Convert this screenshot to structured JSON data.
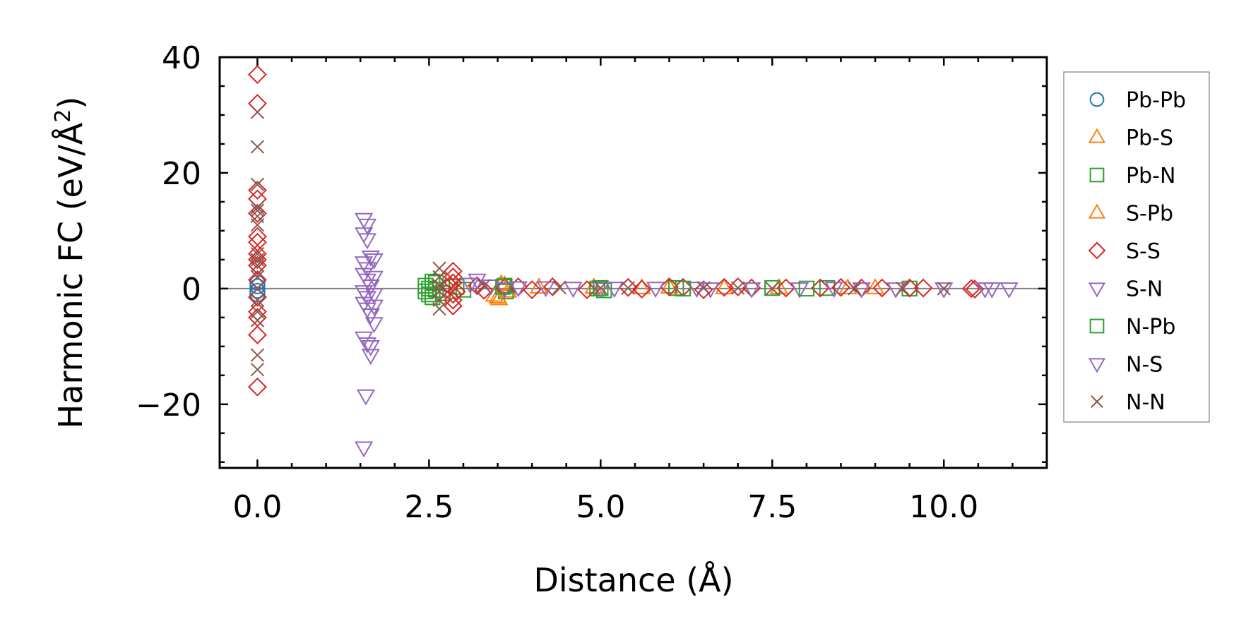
{
  "chart_data": {
    "type": "scatter",
    "xlabel": "Distance (Å)",
    "ylabel_main": "Harmonic FC (eV/Å",
    "ylabel_sup": "2",
    "ylabel_end": ")",
    "xlim": [
      -0.55,
      11.5
    ],
    "ylim": [
      -31,
      40
    ],
    "xticks": [
      0.0,
      2.5,
      5.0,
      7.5,
      10.0
    ],
    "xtick_labels": [
      "0.0",
      "2.5",
      "5.0",
      "7.5",
      "10.0"
    ],
    "yticks": [
      -20,
      0,
      20,
      40
    ],
    "ytick_labels": [
      "−20",
      "0",
      "20",
      "40"
    ],
    "zero_line": 0,
    "legend_position": "outside-right",
    "series": [
      {
        "name": "Pb-Pb",
        "marker": "circle",
        "color": "#1f77b4",
        "points": [
          [
            0,
            1.0
          ],
          [
            0,
            -1.0
          ],
          [
            0,
            0.4
          ],
          [
            0,
            -0.4
          ]
        ]
      },
      {
        "name": "Pb-S",
        "marker": "triangle-up",
        "color": "#ff7f0e",
        "points": [
          [
            3.5,
            -1.5
          ],
          [
            3.52,
            -1.8
          ],
          [
            3.6,
            0.6
          ],
          [
            3.65,
            -0.5
          ],
          [
            4.9,
            0.2
          ],
          [
            6.0,
            0.2
          ],
          [
            7.6,
            0.1
          ],
          [
            9.0,
            0.1
          ]
        ]
      },
      {
        "name": "Pb-N",
        "marker": "square",
        "color": "#2ca02c",
        "points": [
          [
            2.45,
            -0.5
          ],
          [
            2.45,
            0.5
          ],
          [
            2.5,
            0.0
          ],
          [
            2.55,
            -1.5
          ],
          [
            2.6,
            1.0
          ],
          [
            2.7,
            -0.8
          ],
          [
            2.9,
            0.3
          ],
          [
            3.0,
            -0.2
          ],
          [
            3.6,
            0.5
          ],
          [
            3.62,
            -0.5
          ],
          [
            4.95,
            0.0
          ],
          [
            5.05,
            -0.3
          ],
          [
            6.1,
            0.1
          ],
          [
            7.5,
            0.1
          ],
          [
            8.3,
            0.1
          ],
          [
            9.5,
            0.0
          ]
        ]
      },
      {
        "name": "S-Pb",
        "marker": "triangle-up",
        "color": "#ff7f0e",
        "points": [
          [
            3.45,
            -1.2
          ],
          [
            3.55,
            0.8
          ],
          [
            4.1,
            0.2
          ],
          [
            5.6,
            0.1
          ],
          [
            6.8,
            0.1
          ],
          [
            8.6,
            0.1
          ]
        ]
      },
      {
        "name": "S-S",
        "marker": "diamond",
        "color": "#d62728",
        "points": [
          [
            0,
            37
          ],
          [
            0,
            32
          ],
          [
            0,
            17
          ],
          [
            0,
            15.5
          ],
          [
            0,
            13
          ],
          [
            0,
            9
          ],
          [
            0,
            8
          ],
          [
            0,
            6
          ],
          [
            0,
            5
          ],
          [
            0,
            4
          ],
          [
            0,
            1.5
          ],
          [
            0,
            -1.5
          ],
          [
            0,
            -4
          ],
          [
            0,
            -5
          ],
          [
            0,
            -8
          ],
          [
            0,
            -17
          ],
          [
            2.85,
            3.0
          ],
          [
            2.85,
            2.0
          ],
          [
            2.85,
            1.0
          ],
          [
            2.85,
            -1.0
          ],
          [
            2.85,
            -2.0
          ],
          [
            2.85,
            -3.0
          ],
          [
            2.8,
            0.5
          ],
          [
            2.9,
            -0.5
          ],
          [
            3.2,
            0.5
          ],
          [
            3.3,
            -0.3
          ],
          [
            3.6,
            0.2
          ],
          [
            3.8,
            0.3
          ],
          [
            4.0,
            -0.2
          ],
          [
            4.3,
            0.3
          ],
          [
            4.8,
            -0.2
          ],
          [
            5.4,
            0.2
          ],
          [
            5.6,
            -0.1
          ],
          [
            6.0,
            0.3
          ],
          [
            6.2,
            0.2
          ],
          [
            6.5,
            -0.2
          ],
          [
            6.8,
            0.2
          ],
          [
            7.0,
            0.3
          ],
          [
            7.2,
            0.1
          ],
          [
            7.7,
            0.1
          ],
          [
            8.2,
            0.1
          ],
          [
            8.5,
            0.2
          ],
          [
            8.8,
            0.1
          ],
          [
            9.1,
            0.1
          ],
          [
            9.5,
            0.1
          ],
          [
            9.7,
            0.1
          ],
          [
            10.4,
            0.0
          ],
          [
            10.45,
            -0.1
          ]
        ]
      },
      {
        "name": "S-N",
        "marker": "triangle-down",
        "color": "#9467bd",
        "points": [
          [
            1.55,
            12.0
          ],
          [
            1.6,
            11.0
          ],
          [
            1.55,
            9.5
          ],
          [
            1.6,
            8.5
          ],
          [
            1.65,
            5.5
          ],
          [
            1.55,
            4.5
          ],
          [
            1.6,
            3.5
          ],
          [
            1.55,
            2.5
          ],
          [
            1.6,
            1.5
          ],
          [
            1.65,
            0.5
          ],
          [
            1.55,
            -0.5
          ],
          [
            1.6,
            -1.5
          ],
          [
            1.55,
            -2.5
          ],
          [
            1.6,
            -3.5
          ],
          [
            1.65,
            -4.5
          ],
          [
            1.55,
            -8.5
          ],
          [
            1.6,
            -9.5
          ],
          [
            1.65,
            -11.5
          ],
          [
            1.58,
            -18.5
          ],
          [
            1.55,
            -27.5
          ],
          [
            3.2,
            1.5
          ],
          [
            3.4,
            0.5
          ],
          [
            3.6,
            0.0
          ],
          [
            4.2,
            0.2
          ],
          [
            4.6,
            0.1
          ],
          [
            5.2,
            0.1
          ],
          [
            5.8,
            0.1
          ],
          [
            6.4,
            0.1
          ],
          [
            7.2,
            0.0
          ],
          [
            7.9,
            0.0
          ],
          [
            8.4,
            0.1
          ],
          [
            9.3,
            0.0
          ],
          [
            10.0,
            0.0
          ],
          [
            10.6,
            0.0
          ],
          [
            10.95,
            0.0
          ]
        ]
      },
      {
        "name": "N-Pb",
        "marker": "square",
        "color": "#2ca02c",
        "points": [
          [
            2.5,
            -1.0
          ],
          [
            2.55,
            1.2
          ],
          [
            2.6,
            -0.2
          ],
          [
            3.58,
            0.3
          ],
          [
            5.0,
            0.1
          ],
          [
            6.2,
            0.0
          ],
          [
            8.0,
            0.0
          ]
        ]
      },
      {
        "name": "N-S",
        "marker": "triangle-down",
        "color": "#9467bd",
        "points": [
          [
            1.7,
            5.0
          ],
          [
            1.7,
            2.0
          ],
          [
            1.7,
            -1.0
          ],
          [
            1.7,
            -3.0
          ],
          [
            1.7,
            -6.0
          ],
          [
            1.65,
            -10.0
          ],
          [
            3.1,
            0.8
          ],
          [
            3.8,
            0.2
          ],
          [
            5.0,
            0.1
          ],
          [
            6.6,
            0.0
          ],
          [
            8.8,
            0.0
          ],
          [
            10.7,
            0.0
          ]
        ]
      },
      {
        "name": "N-N",
        "marker": "x",
        "color": "#8c564b",
        "points": [
          [
            0,
            30.5
          ],
          [
            0,
            24.5
          ],
          [
            0,
            18
          ],
          [
            0,
            14
          ],
          [
            0,
            13.5
          ],
          [
            0,
            12.5
          ],
          [
            0,
            11
          ],
          [
            0,
            6
          ],
          [
            0,
            5
          ],
          [
            0,
            4
          ],
          [
            0,
            2
          ],
          [
            0,
            0
          ],
          [
            0,
            -2
          ],
          [
            0,
            -4
          ],
          [
            0,
            -5.5
          ],
          [
            0,
            -11.5
          ],
          [
            0,
            -14
          ],
          [
            2.65,
            3.5
          ],
          [
            2.65,
            2.0
          ],
          [
            2.65,
            0.5
          ],
          [
            2.65,
            -0.5
          ],
          [
            2.65,
            -2.0
          ],
          [
            2.65,
            -3.5
          ],
          [
            3.3,
            0.5
          ],
          [
            4.4,
            0.2
          ],
          [
            5.0,
            0.1
          ],
          [
            5.4,
            0.1
          ],
          [
            6.5,
            0.1
          ],
          [
            7.0,
            0.1
          ],
          [
            7.5,
            0.0
          ],
          [
            8.7,
            0.0
          ],
          [
            9.4,
            0.0
          ],
          [
            10.0,
            0.0
          ]
        ]
      }
    ]
  }
}
